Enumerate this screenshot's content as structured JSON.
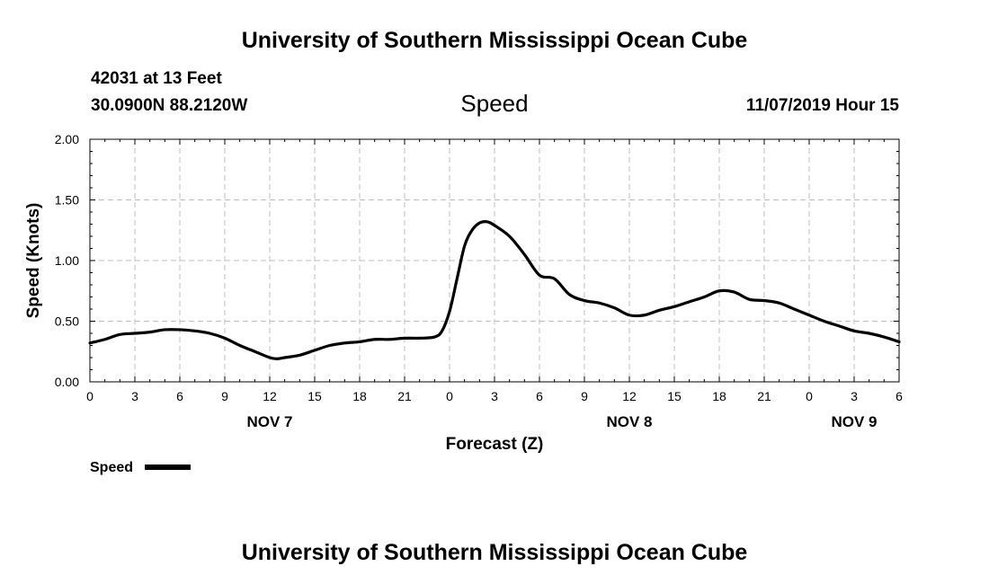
{
  "header": {
    "title": "University of Southern Mississippi Ocean Cube",
    "station": "42031 at 13 Feet",
    "location": "30.0900N 88.2120W",
    "parameter": "Speed",
    "datetime": "11/07/2019 Hour 15"
  },
  "footer": {
    "title": "University of Southern Mississippi Ocean Cube"
  },
  "chart_data": {
    "type": "line",
    "title": "Speed",
    "xlabel": "Forecast (Z)",
    "ylabel": "Speed (Knots)",
    "xlim": [
      0,
      54
    ],
    "ylim": [
      0,
      2.0
    ],
    "grid": true,
    "x_ticks": [
      0,
      3,
      6,
      9,
      12,
      15,
      18,
      21,
      24,
      27,
      30,
      33,
      36,
      39,
      42,
      45,
      48,
      51,
      54
    ],
    "x_tick_labels": [
      "0",
      "3",
      "6",
      "9",
      "12",
      "15",
      "18",
      "21",
      "0",
      "3",
      "6",
      "9",
      "12",
      "15",
      "18",
      "21",
      "0",
      "3",
      "6"
    ],
    "y_ticks": [
      0,
      0.5,
      1.0,
      1.5,
      2.0
    ],
    "y_tick_labels": [
      "0.00",
      "0.50",
      "1.00",
      "1.50",
      "2.00"
    ],
    "day_labels": [
      {
        "x": 12,
        "label": "NOV 7"
      },
      {
        "x": 36,
        "label": "NOV 8"
      },
      {
        "x": 51,
        "label": "NOV 9"
      }
    ],
    "legend": {
      "position": "bottom-left",
      "entries": [
        "Speed"
      ]
    },
    "series": [
      {
        "name": "Speed",
        "color": "#000000",
        "x": [
          0,
          1,
          2,
          3,
          4,
          5,
          6,
          7,
          8,
          9,
          10,
          11,
          12,
          12.5,
          13,
          14,
          15,
          16,
          17,
          18,
          19,
          20,
          21,
          22,
          23,
          23.5,
          24,
          24.5,
          25,
          25.5,
          26,
          26.5,
          27,
          28,
          29,
          30,
          31,
          32,
          33,
          34,
          35,
          36,
          37,
          38,
          39,
          40,
          41,
          42,
          43,
          44,
          45,
          46,
          47,
          48,
          49,
          50,
          51,
          52,
          53,
          54
        ],
        "y": [
          0.32,
          0.35,
          0.39,
          0.4,
          0.41,
          0.43,
          0.43,
          0.42,
          0.4,
          0.36,
          0.3,
          0.25,
          0.2,
          0.19,
          0.2,
          0.22,
          0.26,
          0.3,
          0.32,
          0.33,
          0.35,
          0.35,
          0.36,
          0.36,
          0.37,
          0.42,
          0.58,
          0.85,
          1.12,
          1.25,
          1.31,
          1.32,
          1.29,
          1.2,
          1.05,
          0.88,
          0.85,
          0.72,
          0.67,
          0.65,
          0.61,
          0.55,
          0.55,
          0.59,
          0.62,
          0.66,
          0.7,
          0.75,
          0.74,
          0.68,
          0.67,
          0.65,
          0.6,
          0.55,
          0.5,
          0.46,
          0.42,
          0.4,
          0.37,
          0.33
        ]
      }
    ]
  }
}
